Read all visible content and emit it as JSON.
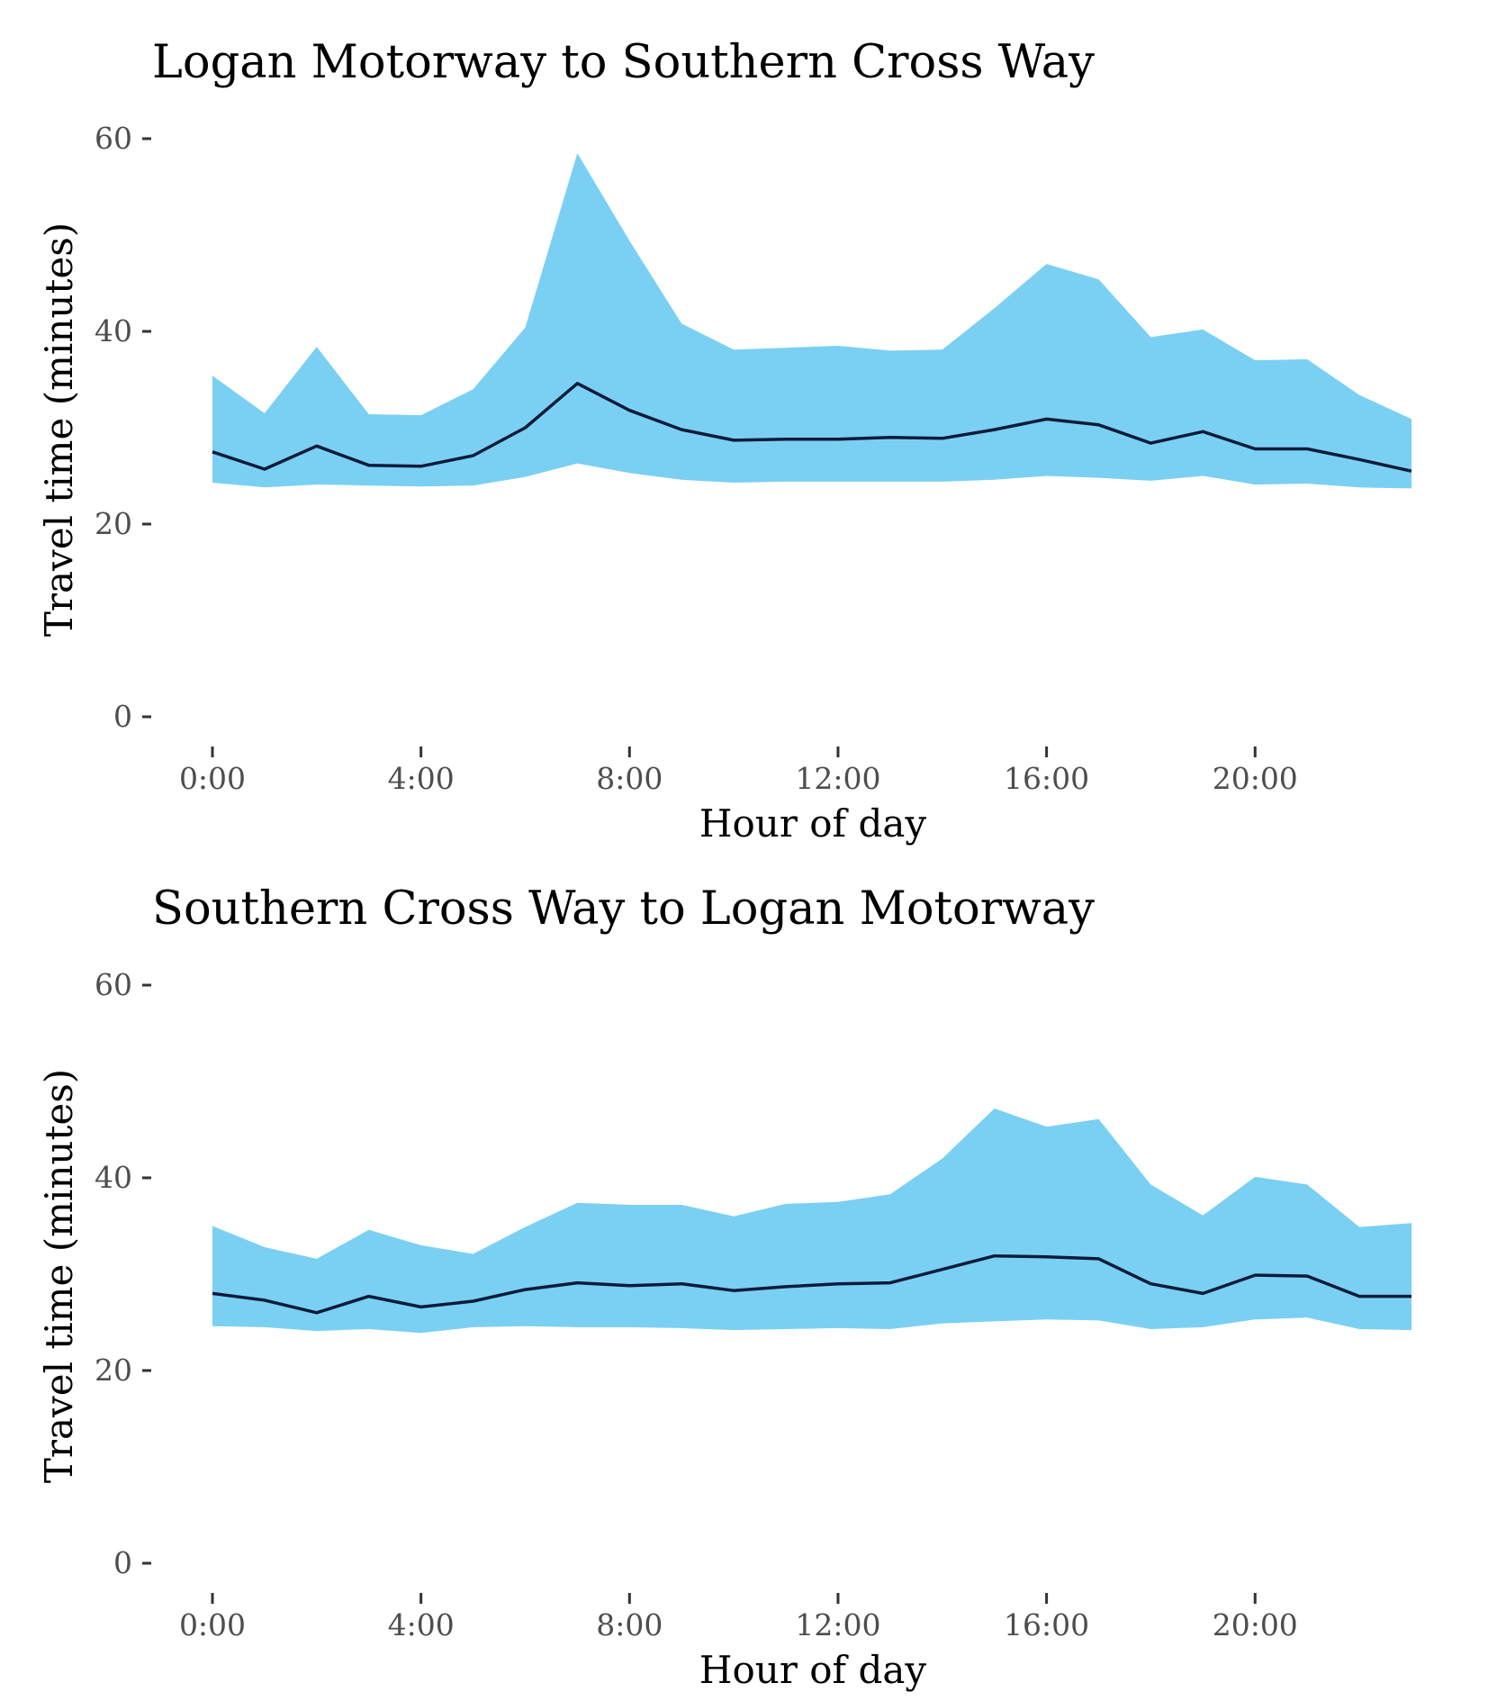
{
  "colors": {
    "band": "#7ad0f2",
    "median": "#0d1b3a"
  },
  "chart_data": [
    {
      "type": "area",
      "title": "Logan Motorway to Southern Cross Way",
      "xlabel": "Hour of day",
      "ylabel": "Travel time (minutes)",
      "xlim": [
        0,
        23
      ],
      "ylim": [
        0,
        60
      ],
      "x_ticks": [
        0,
        4,
        8,
        12,
        16,
        20
      ],
      "x_tick_labels": [
        "0:00",
        "4:00",
        "8:00",
        "12:00",
        "16:00",
        "20:00"
      ],
      "y_ticks": [
        0,
        20,
        40,
        60
      ],
      "y_tick_labels": [
        "0",
        "20",
        "40",
        "60"
      ],
      "grid": false,
      "x": [
        0,
        1,
        2,
        3,
        4,
        5,
        6,
        7,
        8,
        9,
        10,
        11,
        12,
        13,
        14,
        15,
        16,
        17,
        18,
        19,
        20,
        21,
        22,
        23
      ],
      "series": [
        {
          "role": "upper",
          "values": [
            35.4,
            31.5,
            38.4,
            31.4,
            31.3,
            34.0,
            40.4,
            58.5,
            49.4,
            40.8,
            38.1,
            38.3,
            38.5,
            38.0,
            38.1,
            42.4,
            47.0,
            45.4,
            39.4,
            40.2,
            37.0,
            37.1,
            33.4,
            30.9
          ]
        },
        {
          "role": "median",
          "values": [
            27.5,
            25.7,
            28.1,
            26.1,
            26.0,
            27.1,
            30.0,
            34.6,
            31.8,
            29.8,
            28.7,
            28.8,
            28.8,
            29.0,
            28.9,
            29.8,
            30.9,
            30.3,
            28.4,
            29.6,
            27.8,
            27.8,
            26.7,
            25.5
          ]
        },
        {
          "role": "lower",
          "values": [
            24.3,
            23.8,
            24.1,
            24.0,
            23.9,
            24.0,
            24.9,
            26.3,
            25.3,
            24.6,
            24.3,
            24.4,
            24.4,
            24.4,
            24.4,
            24.6,
            25.0,
            24.8,
            24.5,
            25.0,
            24.1,
            24.2,
            23.8,
            23.7
          ]
        }
      ]
    },
    {
      "type": "area",
      "title": "Southern Cross Way to Logan Motorway",
      "xlabel": "Hour of day",
      "ylabel": "Travel time (minutes)",
      "xlim": [
        0,
        23
      ],
      "ylim": [
        0,
        60
      ],
      "x_ticks": [
        0,
        4,
        8,
        12,
        16,
        20
      ],
      "x_tick_labels": [
        "0:00",
        "4:00",
        "8:00",
        "12:00",
        "16:00",
        "20:00"
      ],
      "y_ticks": [
        0,
        20,
        40,
        60
      ],
      "y_tick_labels": [
        "0",
        "20",
        "40",
        "60"
      ],
      "grid": false,
      "x": [
        0,
        1,
        2,
        3,
        4,
        5,
        6,
        7,
        8,
        9,
        10,
        11,
        12,
        13,
        14,
        15,
        16,
        17,
        18,
        19,
        20,
        21,
        22,
        23
      ],
      "series": [
        {
          "role": "upper",
          "values": [
            35.0,
            32.8,
            31.6,
            34.6,
            33.0,
            32.1,
            34.9,
            37.4,
            37.2,
            37.2,
            36.0,
            37.3,
            37.5,
            38.3,
            42.0,
            47.2,
            45.3,
            46.1,
            39.3,
            36.1,
            40.1,
            39.3,
            34.9,
            35.3
          ]
        },
        {
          "role": "median",
          "values": [
            28.0,
            27.3,
            26.0,
            27.7,
            26.6,
            27.2,
            28.4,
            29.1,
            28.8,
            29.0,
            28.3,
            28.7,
            29.0,
            29.1,
            30.5,
            31.9,
            31.8,
            31.6,
            29.0,
            28.0,
            29.9,
            29.8,
            27.7,
            27.7
          ]
        },
        {
          "role": "lower",
          "values": [
            24.6,
            24.5,
            24.1,
            24.3,
            23.9,
            24.5,
            24.6,
            24.5,
            24.5,
            24.4,
            24.2,
            24.3,
            24.4,
            24.3,
            24.9,
            25.1,
            25.3,
            25.2,
            24.3,
            24.5,
            25.3,
            25.5,
            24.3,
            24.2
          ]
        }
      ]
    }
  ]
}
